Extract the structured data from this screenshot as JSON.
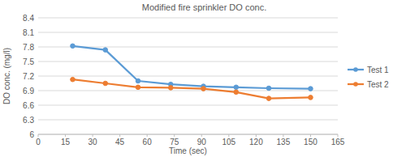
{
  "chart_data": {
    "type": "line",
    "title": "Modified fire sprinkler DO conc.",
    "x_label": "Time (sec)",
    "y_label": "DO conc. (mg/l)",
    "x": [
      19,
      37,
      55,
      73,
      91,
      109,
      127,
      150
    ],
    "series": [
      {
        "name": "Test 1",
        "color": "#5b9bd5",
        "marker": "circle",
        "values": [
          7.82,
          7.74,
          7.1,
          7.03,
          6.99,
          6.97,
          6.95,
          6.94
        ]
      },
      {
        "name": "Test 2",
        "color": "#ed7d31",
        "marker": "circle",
        "values": [
          7.13,
          7.05,
          6.97,
          6.96,
          6.94,
          6.87,
          6.74,
          6.76
        ]
      }
    ],
    "xlim": [
      0,
      165
    ],
    "xticks": [
      0,
      15,
      30,
      45,
      60,
      75,
      90,
      105,
      120,
      135,
      150,
      165
    ],
    "ylim": [
      6,
      8.4
    ],
    "yticks": [
      6,
      6.3,
      6.6,
      6.9,
      7.2,
      7.5,
      7.8,
      8.1,
      8.4
    ],
    "grid": true,
    "legend": "right"
  }
}
